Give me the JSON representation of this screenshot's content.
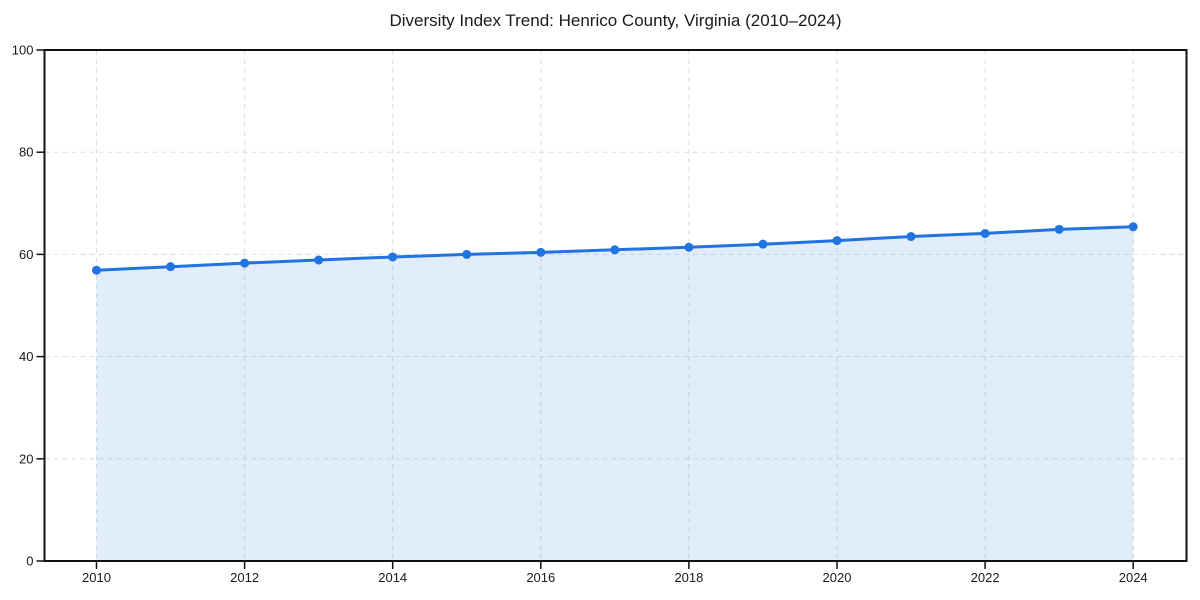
{
  "page": {
    "background_color": "#ffffff"
  },
  "chart_data": {
    "type": "area",
    "title": "Diversity Index Trend: Henrico County, Virginia (2010–2024)",
    "series_name": "Diversity Index",
    "x": [
      2010,
      2011,
      2012,
      2013,
      2014,
      2015,
      2016,
      2017,
      2018,
      2019,
      2020,
      2021,
      2022,
      2023,
      2024
    ],
    "values": [
      56.9,
      57.6,
      58.3,
      58.9,
      59.5,
      60.0,
      60.4,
      60.9,
      61.4,
      62.0,
      62.7,
      63.5,
      64.1,
      64.9,
      65.4
    ],
    "xlabel": "",
    "ylabel": "",
    "ylim": [
      0,
      100
    ],
    "y_ticks": [
      0,
      20,
      40,
      60,
      80,
      100
    ],
    "x_ticks": [
      2010,
      2012,
      2014,
      2016,
      2018,
      2020,
      2022,
      2024
    ],
    "grid": true,
    "grid_style": "dashed",
    "legend_position": "none",
    "marker": "circle",
    "colors": {
      "line": "#2173e0",
      "marker": "#2173e0",
      "area_fill": "rgba(33,115,224,0.13)",
      "gridline": "#dedede",
      "axis": "#111111",
      "tick_label": "#1a1a1a",
      "title": "#1a1a1a"
    }
  }
}
